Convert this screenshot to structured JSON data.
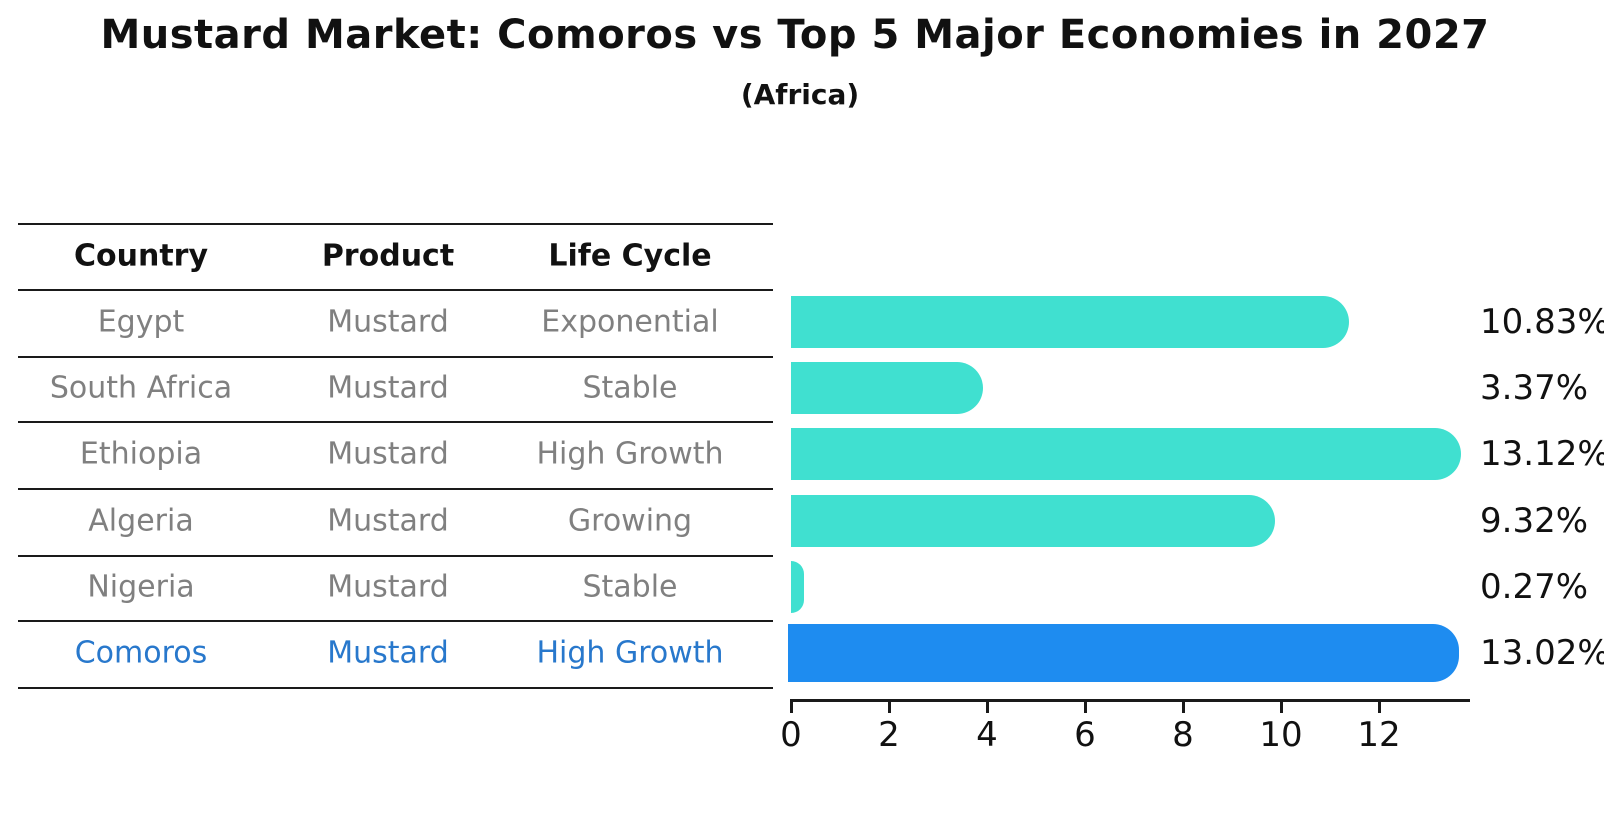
{
  "title": "Mustard Market: Comoros vs Top 5 Major Economies in 2027",
  "subtitle": "(Africa)",
  "table": {
    "headers": [
      "Country",
      "Product",
      "Life Cycle"
    ],
    "rows": [
      {
        "country": "Egypt",
        "product": "Mustard",
        "life_cycle": "Exponential",
        "highlight": false
      },
      {
        "country": "South Africa",
        "product": "Mustard",
        "life_cycle": "Stable",
        "highlight": false
      },
      {
        "country": "Ethiopia",
        "product": "Mustard",
        "life_cycle": "High Growth",
        "highlight": false
      },
      {
        "country": "Algeria",
        "product": "Mustard",
        "life_cycle": "Growing",
        "highlight": false
      },
      {
        "country": "Nigeria",
        "product": "Mustard",
        "life_cycle": "Stable",
        "highlight": false
      },
      {
        "country": "Comoros",
        "product": "Mustard",
        "life_cycle": "High Growth",
        "highlight": true
      }
    ]
  },
  "chart_data": {
    "type": "bar",
    "orientation": "horizontal",
    "title": "Mustard Market: Comoros vs Top 5 Major Economies in 2027",
    "subtitle": "(Africa)",
    "categories": [
      "Egypt",
      "South Africa",
      "Ethiopia",
      "Algeria",
      "Nigeria",
      "Comoros"
    ],
    "values": [
      10.83,
      3.37,
      13.12,
      9.32,
      0.27,
      13.02
    ],
    "value_labels": [
      "10.83%",
      "3.37%",
      "13.12%",
      "9.32%",
      "0.27%",
      "13.02%"
    ],
    "xlabel": "",
    "ylabel": "",
    "xlim": [
      0,
      13.9
    ],
    "xticks": [
      0,
      2,
      4,
      6,
      8,
      10,
      12
    ],
    "grid": false,
    "legend": null,
    "bar_color": "#40e0d0",
    "highlight_color": "#1e8cf0",
    "highlight_index": 5,
    "highlight_text_color": "#2878cc"
  }
}
